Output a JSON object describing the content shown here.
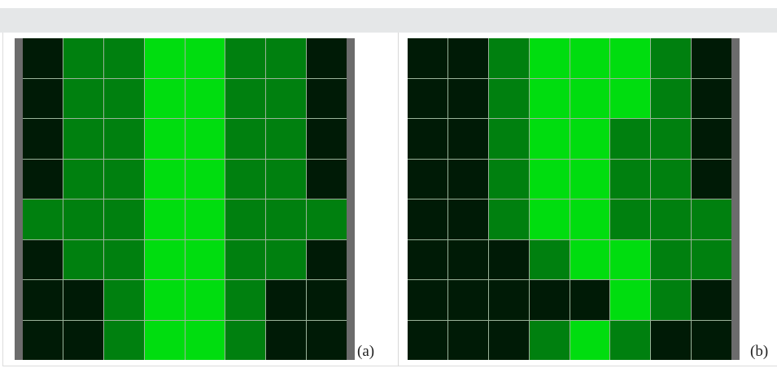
{
  "colors": {
    "level_0": "#001b06",
    "level_1": "#00800f",
    "level_2": "#00dd0f",
    "side_bar": "#6c6c6c",
    "grid_line": "#9ab39a",
    "top_band": "#e5e7e8"
  },
  "panels": [
    {
      "label": "(a)",
      "side_bars": [
        "left",
        "right"
      ],
      "grid": [
        [
          0,
          1,
          1,
          2,
          2,
          1,
          1,
          0
        ],
        [
          0,
          1,
          1,
          2,
          2,
          1,
          1,
          0
        ],
        [
          0,
          1,
          1,
          2,
          2,
          1,
          1,
          0
        ],
        [
          0,
          1,
          1,
          2,
          2,
          1,
          1,
          0
        ],
        [
          1,
          1,
          1,
          2,
          2,
          1,
          1,
          1
        ],
        [
          0,
          1,
          1,
          2,
          2,
          1,
          1,
          0
        ],
        [
          0,
          0,
          1,
          2,
          2,
          1,
          0,
          0
        ],
        [
          0,
          0,
          1,
          2,
          2,
          1,
          0,
          0
        ]
      ]
    },
    {
      "label": "(b)",
      "side_bars": [
        "right"
      ],
      "grid": [
        [
          0,
          0,
          1,
          2,
          2,
          2,
          1,
          0
        ],
        [
          0,
          0,
          1,
          2,
          2,
          2,
          1,
          0
        ],
        [
          0,
          0,
          1,
          2,
          2,
          1,
          1,
          0
        ],
        [
          0,
          0,
          1,
          2,
          2,
          1,
          1,
          0
        ],
        [
          0,
          0,
          1,
          2,
          2,
          1,
          1,
          1
        ],
        [
          0,
          0,
          0,
          1,
          2,
          2,
          1,
          1
        ],
        [
          0,
          0,
          0,
          0,
          0,
          2,
          1,
          0
        ],
        [
          0,
          0,
          0,
          1,
          2,
          1,
          0,
          0
        ]
      ]
    }
  ]
}
